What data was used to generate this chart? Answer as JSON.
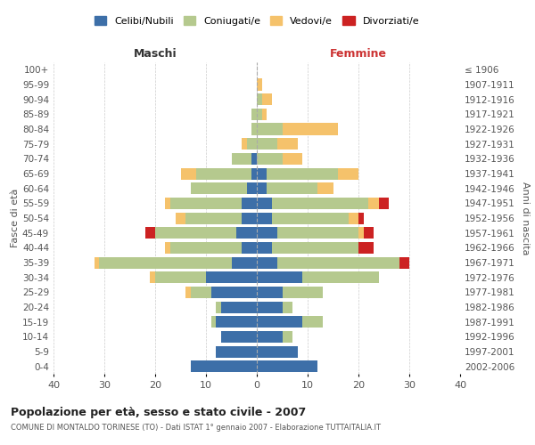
{
  "age_groups": [
    "0-4",
    "5-9",
    "10-14",
    "15-19",
    "20-24",
    "25-29",
    "30-34",
    "35-39",
    "40-44",
    "45-49",
    "50-54",
    "55-59",
    "60-64",
    "65-69",
    "70-74",
    "75-79",
    "80-84",
    "85-89",
    "90-94",
    "95-99",
    "100+"
  ],
  "birth_years": [
    "2002-2006",
    "1997-2001",
    "1992-1996",
    "1987-1991",
    "1982-1986",
    "1977-1981",
    "1972-1976",
    "1967-1971",
    "1962-1966",
    "1957-1961",
    "1952-1956",
    "1947-1951",
    "1942-1946",
    "1937-1941",
    "1932-1936",
    "1927-1931",
    "1922-1926",
    "1917-1921",
    "1912-1916",
    "1907-1911",
    "≤ 1906"
  ],
  "colors": {
    "celibi": "#3d6fa8",
    "coniugati": "#b5c98e",
    "vedovi": "#f5c26b",
    "divorziati": "#cc2222"
  },
  "maschi": {
    "celibi": [
      13,
      8,
      7,
      8,
      7,
      9,
      10,
      5,
      3,
      4,
      3,
      3,
      2,
      1,
      1,
      0,
      0,
      0,
      0,
      0,
      0
    ],
    "coniugati": [
      0,
      0,
      0,
      1,
      1,
      4,
      10,
      26,
      14,
      16,
      11,
      14,
      11,
      11,
      4,
      2,
      1,
      1,
      0,
      0,
      0
    ],
    "vedovi": [
      0,
      0,
      0,
      0,
      0,
      1,
      1,
      1,
      1,
      0,
      2,
      1,
      0,
      3,
      0,
      1,
      0,
      0,
      0,
      0,
      0
    ],
    "divorziati": [
      0,
      0,
      0,
      0,
      0,
      0,
      0,
      0,
      0,
      2,
      0,
      0,
      0,
      0,
      0,
      0,
      0,
      0,
      0,
      0,
      0
    ]
  },
  "femmine": {
    "celibi": [
      12,
      8,
      5,
      9,
      5,
      5,
      9,
      4,
      3,
      4,
      3,
      3,
      2,
      2,
      0,
      0,
      0,
      0,
      0,
      0,
      0
    ],
    "coniugati": [
      0,
      0,
      2,
      4,
      2,
      8,
      15,
      24,
      17,
      16,
      15,
      19,
      10,
      14,
      5,
      4,
      5,
      1,
      1,
      0,
      0
    ],
    "vedovi": [
      0,
      0,
      0,
      0,
      0,
      0,
      0,
      0,
      0,
      1,
      2,
      2,
      3,
      4,
      4,
      4,
      11,
      1,
      2,
      1,
      0
    ],
    "divorziati": [
      0,
      0,
      0,
      0,
      0,
      0,
      0,
      2,
      3,
      2,
      1,
      2,
      0,
      0,
      0,
      0,
      0,
      0,
      0,
      0,
      0
    ]
  },
  "xlim": 40,
  "title": "Popolazione per età, sesso e stato civile - 2007",
  "subtitle": "COMUNE DI MONTALDO TORINESE (TO) - Dati ISTAT 1° gennaio 2007 - Elaborazione TUTTAITALIA.IT",
  "ylabel_left": "Fasce di età",
  "ylabel_right": "Anni di nascita",
  "xlabel_left": "Maschi",
  "xlabel_right": "Femmine",
  "background_color": "#ffffff",
  "grid_color": "#cccccc"
}
